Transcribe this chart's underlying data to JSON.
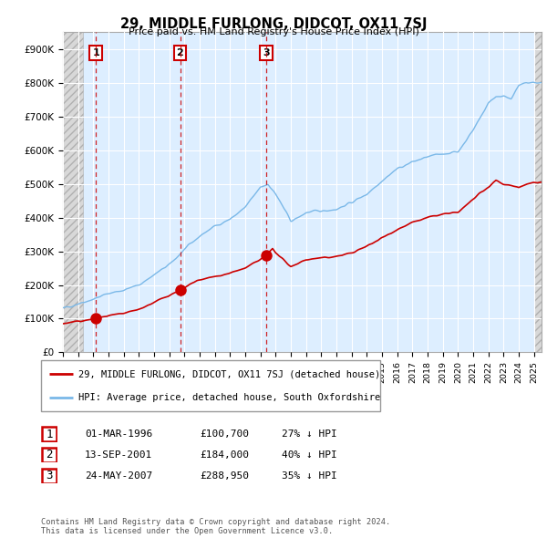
{
  "title": "29, MIDDLE FURLONG, DIDCOT, OX11 7SJ",
  "subtitle": "Price paid vs. HM Land Registry's House Price Index (HPI)",
  "ylim": [
    0,
    950000
  ],
  "yticks": [
    0,
    100000,
    200000,
    300000,
    400000,
    500000,
    600000,
    700000,
    800000,
    900000
  ],
  "ytick_labels": [
    "£0",
    "£100K",
    "£200K",
    "£300K",
    "£400K",
    "£500K",
    "£600K",
    "£700K",
    "£800K",
    "£900K"
  ],
  "xlim_start": 1994.0,
  "xlim_end": 2025.5,
  "hpi_color": "#7ab8e8",
  "price_color": "#cc0000",
  "sale_dates": [
    1996.17,
    2001.71,
    2007.39
  ],
  "sale_prices": [
    100700,
    184000,
    288950
  ],
  "sale_labels": [
    "1",
    "2",
    "3"
  ],
  "legend_label_red": "29, MIDDLE FURLONG, DIDCOT, OX11 7SJ (detached house)",
  "legend_label_blue": "HPI: Average price, detached house, South Oxfordshire",
  "table_rows": [
    [
      "1",
      "01-MAR-1996",
      "£100,700",
      "27% ↓ HPI"
    ],
    [
      "2",
      "13-SEP-2001",
      "£184,000",
      "40% ↓ HPI"
    ],
    [
      "3",
      "24-MAY-2007",
      "£288,950",
      "35% ↓ HPI"
    ]
  ],
  "footnote": "Contains HM Land Registry data © Crown copyright and database right 2024.\nThis data is licensed under the Open Government Licence v3.0.",
  "bg_chart": "#ddeeff",
  "grid_color": "#ffffff",
  "hatch_end": 1995.3,
  "hatch_start_right": 2025.0
}
